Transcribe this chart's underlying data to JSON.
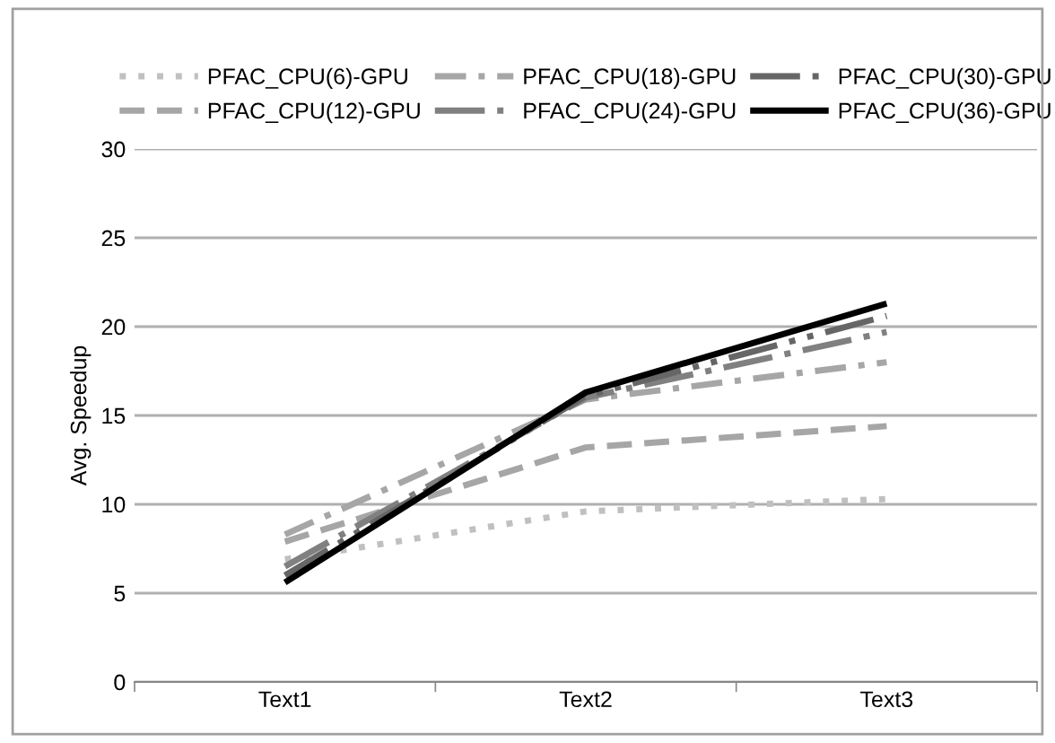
{
  "chart_data": {
    "type": "line",
    "ylabel": "Avg. Speedup",
    "categories": [
      "Text1",
      "Text2",
      "Text3"
    ],
    "series": [
      {
        "name": "PFAC_CPU(6)-GPU",
        "color": "#c0c0c0",
        "line_style": "dotted",
        "values": [
          6.9,
          9.6,
          10.3
        ]
      },
      {
        "name": "PFAC_CPU(12)-GPU",
        "color": "#a6a6a6",
        "line_style": "dashed",
        "values": [
          7.9,
          13.2,
          14.4
        ]
      },
      {
        "name": "PFAC_CPU(18)-GPU",
        "color": "#a6a6a6",
        "line_style": "dashdot",
        "values": [
          8.3,
          15.9,
          18.0
        ]
      },
      {
        "name": "PFAC_CPU(24)-GPU",
        "color": "#808080",
        "line_style": "longdashdot",
        "values": [
          6.5,
          16.0,
          19.7
        ]
      },
      {
        "name": "PFAC_CPU(30)-GPU",
        "color": "#666666",
        "line_style": "longdashdotdot",
        "values": [
          6.0,
          16.1,
          20.6
        ]
      },
      {
        "name": "PFAC_CPU(36)-GPU",
        "color": "#000000",
        "line_style": "solid",
        "values": [
          5.6,
          16.3,
          21.3
        ]
      }
    ],
    "ylim": [
      0,
      30
    ],
    "yticks": [
      0,
      5,
      10,
      15,
      20,
      25,
      30
    ],
    "grid": "y",
    "legend": "top"
  }
}
